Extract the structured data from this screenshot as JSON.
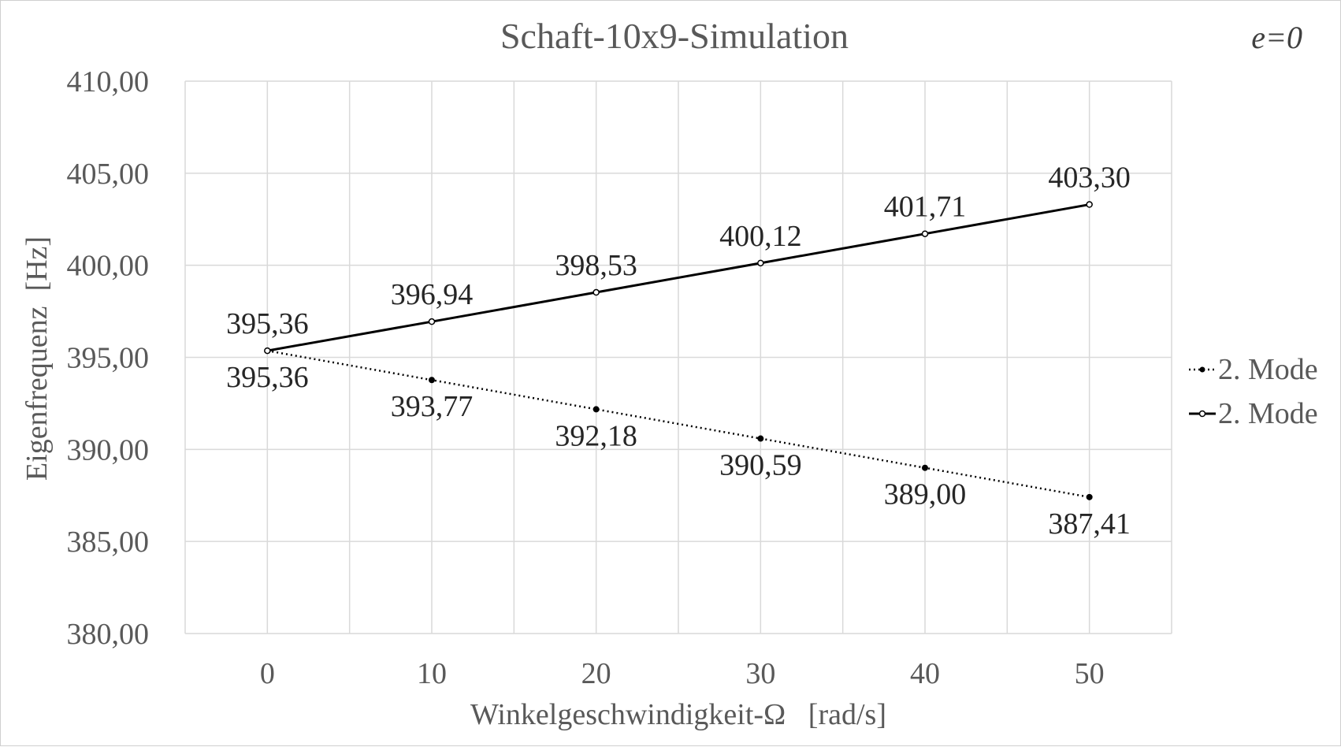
{
  "chart_data": {
    "type": "line",
    "title": "Schaft-10x9-Simulation",
    "annotation": "e=0",
    "xlabel": "Winkelgeschwindigkeit-Ω   [rad/s]",
    "ylabel": "Eigenfrequenz  [Hz]",
    "xlim": [
      -5,
      55
    ],
    "ylim": [
      380,
      410
    ],
    "x_ticks": [
      0,
      10,
      20,
      30,
      40,
      50
    ],
    "x_tick_labels": [
      "0",
      "10",
      "20",
      "30",
      "40",
      "50"
    ],
    "y_ticks": [
      380,
      385,
      390,
      395,
      400,
      405,
      410
    ],
    "y_tick_labels": [
      "380,00",
      "385,00",
      "390,00",
      "395,00",
      "400,00",
      "405,00",
      "410,00"
    ],
    "grid": true,
    "legend_position": "right",
    "series": [
      {
        "name": "2. Mode",
        "style": "dotted",
        "marker": "filled",
        "color": "#000000",
        "x": [
          0,
          10,
          20,
          30,
          40,
          50
        ],
        "values": [
          395.36,
          393.77,
          392.18,
          390.59,
          389.0,
          387.41
        ],
        "labels": [
          "395,36",
          "393,77",
          "392,18",
          "390,59",
          "389,00",
          "387,41"
        ]
      },
      {
        "name": "2. Mode",
        "style": "solid",
        "marker": "hollow",
        "color": "#000000",
        "x": [
          0,
          10,
          20,
          30,
          40,
          50
        ],
        "values": [
          395.36,
          396.94,
          398.53,
          400.12,
          401.71,
          403.3
        ],
        "labels": [
          "395,36",
          "396,94",
          "398,53",
          "400,12",
          "401,71",
          "403,30"
        ]
      }
    ]
  }
}
